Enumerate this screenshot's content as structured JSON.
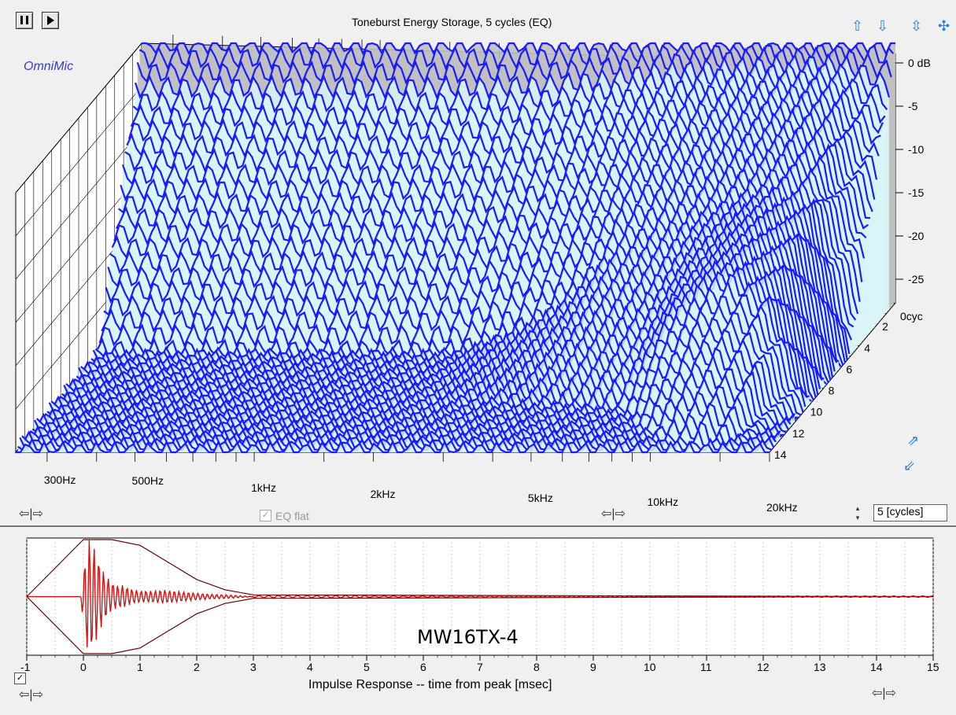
{
  "chart_title": "Toneburst Energy Storage, 5 cycles (EQ)",
  "brand": "OmniMic",
  "db_axis": {
    "unit_label": "0 dB",
    "ticks": [
      "-5",
      "-10",
      "-15",
      "-20",
      "-25"
    ]
  },
  "cycle_axis": {
    "ticks": [
      "0cyc",
      "2",
      "4",
      "6",
      "8",
      "10",
      "12",
      "14"
    ]
  },
  "freq_axis": {
    "ticks": [
      "300Hz",
      "500Hz",
      "1kHz",
      "2kHz",
      "5kHz",
      "10kHz",
      "20kHz"
    ]
  },
  "controls": {
    "eq_flat_label": "EQ flat",
    "cycles_value": "5 [cycles]",
    "pause_icon": "pause-icon",
    "play_icon": "play-icon"
  },
  "impulse": {
    "xlabel": "Impulse Response  -- time from peak [msec]",
    "x_ticks": [
      "-1",
      "0",
      "1",
      "2",
      "3",
      "4",
      "5",
      "6",
      "7",
      "8",
      "9",
      "10",
      "11",
      "12",
      "13",
      "14",
      "15"
    ],
    "annotation": "MW16TX-4"
  },
  "chart_data": [
    {
      "type": "waterfall",
      "title": "Toneburst Energy Storage, 5 cycles (EQ)",
      "x_scale": "log",
      "xlim": [
        250,
        20000
      ],
      "ylim_db": [
        -30,
        0
      ],
      "z_label": "cycles",
      "zlim": [
        0,
        14
      ],
      "x_tick_labels": [
        "300Hz",
        "500Hz",
        "1kHz",
        "2kHz",
        "5kHz",
        "10kHz",
        "20kHz"
      ],
      "y_tick_labels": [
        "0 dB",
        "-5",
        "-10",
        "-15",
        "-20",
        "-25"
      ],
      "z_tick_labels": [
        "0cyc",
        "2",
        "4",
        "6",
        "8",
        "10",
        "12",
        "14"
      ],
      "decay_profile": {
        "freq_hz": [
          300,
          500,
          1000,
          2000,
          3000,
          4000,
          5000,
          7000,
          9000,
          11000,
          13000,
          16000,
          20000
        ],
        "level_db_at_cycles": {
          "0": [
            0,
            0,
            0,
            0,
            0,
            0,
            0,
            0,
            0,
            0,
            0,
            0,
            0
          ],
          "5": [
            -30,
            -30,
            -30,
            -30,
            -27,
            -23,
            -18,
            -15,
            -13,
            -12,
            -11,
            -13,
            -30
          ],
          "10": [
            -30,
            -30,
            -30,
            -30,
            -30,
            -30,
            -30,
            -28,
            -20,
            -16,
            -15,
            -18,
            -30
          ]
        }
      },
      "colors": {
        "trace": "#1a1aff",
        "back_wall": "#c0c0c0",
        "floor": "#eef6ee",
        "decay_fill": "#d8f4f8"
      }
    },
    {
      "type": "line",
      "title": "",
      "xlabel": "Impulse Response  -- time from peak [msec]",
      "xlim": [
        -1,
        15
      ],
      "ylim": [
        -1,
        1
      ],
      "series": [
        {
          "name": "",
          "x": [
            -1,
            -0.1,
            0,
            0.05,
            0.1,
            0.15,
            0.2,
            0.25,
            0.3,
            0.35,
            0.4,
            0.45,
            0.5,
            0.6,
            0.7,
            0.8,
            0.9,
            1.0,
            1.2,
            1.4,
            1.6,
            1.8,
            2.0,
            2.3,
            2.6,
            3.0,
            15
          ],
          "y": [
            0,
            0,
            0.35,
            -0.9,
            1.0,
            -0.95,
            0.85,
            -0.7,
            0.6,
            -0.45,
            0.4,
            -0.3,
            0.25,
            -0.2,
            0.2,
            -0.15,
            0.12,
            -0.1,
            0.1,
            -0.12,
            0.1,
            -0.08,
            0.06,
            -0.04,
            0.03,
            0.0,
            0.0
          ],
          "color": "#e00000"
        },
        {
          "name": "",
          "x": [
            -1,
            0,
            0.5,
            1,
            1.5,
            2,
            2.5,
            3,
            15
          ],
          "y": [
            0,
            1,
            1,
            0.9,
            0.6,
            0.3,
            0.12,
            0.03,
            0
          ],
          "color": "#6b0000"
        }
      ],
      "colors": {
        "envelope": "#6b0000",
        "impulse": "#e00000"
      }
    }
  ]
}
